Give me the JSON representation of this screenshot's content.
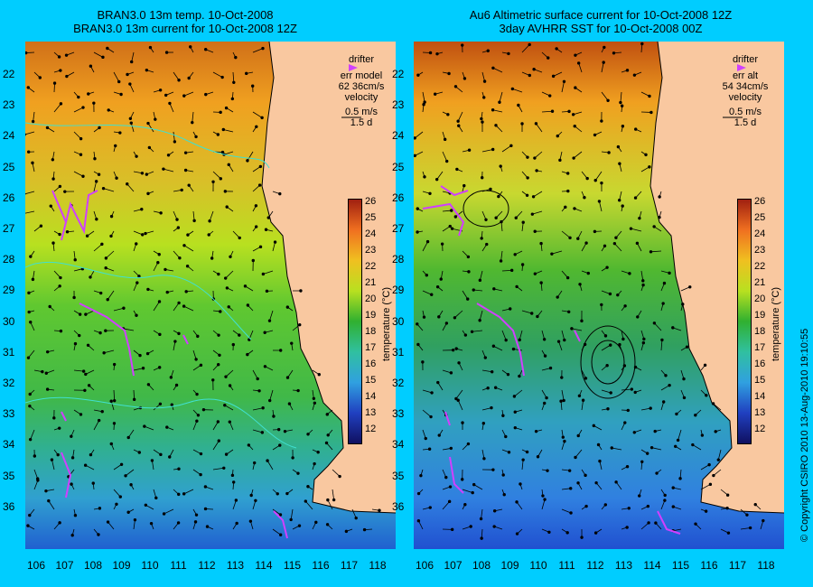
{
  "left": {
    "title1": "BRAN3.0 13m temp. 10-Oct-2008",
    "title2": "BRAN3.0 13m current for 10-Oct-2008 12Z",
    "legend": {
      "drifter": "drifter",
      "err_label": "err model",
      "err_value": "62 36cm/s",
      "velocity": "velocity",
      "speed": "0.5 m/s",
      "time": "1.5 d"
    }
  },
  "right": {
    "title1": "Au6 Altimetric surface current for 10-Oct-2008 12Z",
    "title2": "3day AVHRR SST for 10-Oct-2008 00Z",
    "legend": {
      "drifter": "drifter",
      "err_label": "err alt",
      "err_value": "54 34cm/s",
      "velocity": "velocity",
      "speed": "0.5 m/s",
      "time": "1.5 d"
    }
  },
  "lat_labels": [
    "22",
    "23",
    "24",
    "25",
    "26",
    "27",
    "28",
    "29",
    "30",
    "31",
    "32",
    "33",
    "34",
    "35",
    "36"
  ],
  "lon_labels": [
    "106",
    "107",
    "108",
    "109",
    "110",
    "111",
    "112",
    "113",
    "114",
    "115",
    "116",
    "117",
    "118"
  ],
  "colorbar": {
    "ticks": [
      "26",
      "25",
      "24",
      "23",
      "22",
      "21",
      "20",
      "19",
      "18",
      "17",
      "16",
      "15",
      "14",
      "13",
      "12"
    ],
    "unit": "temperature (°C)"
  },
  "copyright": "© Copyright CSIRO 2010   13-Aug-2010 19:10:55",
  "colors": {
    "background": "#00cdff",
    "land": "#f9c8a0",
    "drifter": "#d040ff",
    "contour": "#40e0d0"
  }
}
